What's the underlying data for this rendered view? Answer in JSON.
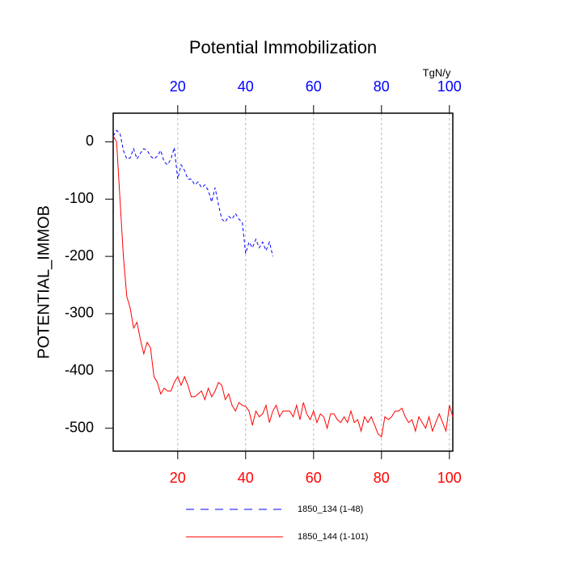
{
  "chart_data": {
    "type": "line",
    "title": "Potential Immobilization",
    "y_label": "POTENTIAL_IMMOB",
    "x2_unit": "TgN/y",
    "x": [
      1,
      2,
      3,
      4,
      5,
      6,
      7,
      8,
      9,
      10,
      11,
      12,
      13,
      14,
      15,
      16,
      17,
      18,
      19,
      20,
      21,
      22,
      23,
      24,
      25,
      26,
      27,
      28,
      29,
      30,
      31,
      32,
      33,
      34,
      35,
      36,
      37,
      38,
      39,
      40,
      41,
      42,
      43,
      44,
      45,
      46,
      47,
      48,
      49,
      50,
      51,
      52,
      53,
      54,
      55,
      56,
      57,
      58,
      59,
      60,
      61,
      62,
      63,
      64,
      65,
      66,
      67,
      68,
      69,
      70,
      71,
      72,
      73,
      74,
      75,
      76,
      77,
      78,
      79,
      80,
      81,
      82,
      83,
      84,
      85,
      86,
      87,
      88,
      89,
      90,
      91,
      92,
      93,
      94,
      95,
      96,
      97,
      98,
      99,
      100,
      101
    ],
    "series": [
      {
        "name": "1850_134 (1-48)",
        "color": "#0000ff",
        "style": "dashed",
        "values": [
          10,
          20,
          15,
          -15,
          -30,
          -28,
          -12,
          -30,
          -20,
          -12,
          -15,
          -25,
          -30,
          -25,
          -15,
          -35,
          -40,
          -30,
          -10,
          -65,
          -40,
          -50,
          -65,
          -65,
          -75,
          -70,
          -80,
          -75,
          -85,
          -105,
          -80,
          -110,
          -135,
          -140,
          -130,
          -135,
          -125,
          -135,
          -140,
          -195,
          -175,
          -185,
          -170,
          -185,
          -175,
          -190,
          -175,
          -200,
          null,
          null,
          null,
          null,
          null,
          null,
          null,
          null,
          null,
          null,
          null,
          null,
          null,
          null,
          null,
          null,
          null,
          null,
          null,
          null,
          null,
          null,
          null,
          null,
          null,
          null,
          null,
          null,
          null,
          null,
          null,
          null,
          null,
          null,
          null,
          null,
          null,
          null,
          null,
          null,
          null,
          null,
          null,
          null,
          null,
          null,
          null,
          null,
          null,
          null,
          null,
          null,
          null
        ]
      },
      {
        "name": "1850_144 (1-101)",
        "color": "#ff0000",
        "style": "solid",
        "values": [
          10,
          0,
          -100,
          -200,
          -270,
          -290,
          -325,
          -315,
          -345,
          -370,
          -350,
          -360,
          -410,
          -420,
          -440,
          -430,
          -435,
          -435,
          -420,
          -410,
          -425,
          -410,
          -425,
          -445,
          -445,
          -440,
          -435,
          -450,
          -430,
          -445,
          -435,
          -420,
          -425,
          -450,
          -440,
          -460,
          -470,
          -455,
          -460,
          -462,
          -470,
          -495,
          -470,
          -480,
          -475,
          -460,
          -490,
          -470,
          -460,
          -480,
          -470,
          -470,
          -470,
          -480,
          -460,
          -485,
          -455,
          -475,
          -485,
          -470,
          -490,
          -475,
          -480,
          -500,
          -475,
          -475,
          -485,
          -490,
          -480,
          -490,
          -470,
          -490,
          -485,
          -505,
          -480,
          -490,
          -480,
          -495,
          -510,
          -515,
          -480,
          -485,
          -480,
          -470,
          -470,
          -465,
          -480,
          -490,
          -485,
          -505,
          -480,
          -490,
          -500,
          -480,
          -505,
          -490,
          -475,
          -490,
          -505,
          -460,
          -480
        ]
      }
    ],
    "xlim": [
      1,
      101
    ],
    "xticks": [
      20,
      40,
      60,
      80,
      100
    ],
    "xtick_color": "#ff0000",
    "x2ticks": [
      20,
      40,
      60,
      80,
      100
    ],
    "x2tick_color": "#0000ff",
    "ylim": [
      -540,
      50
    ],
    "yticks": [
      0,
      -100,
      -200,
      -300,
      -400,
      -500
    ],
    "grid": "x"
  }
}
